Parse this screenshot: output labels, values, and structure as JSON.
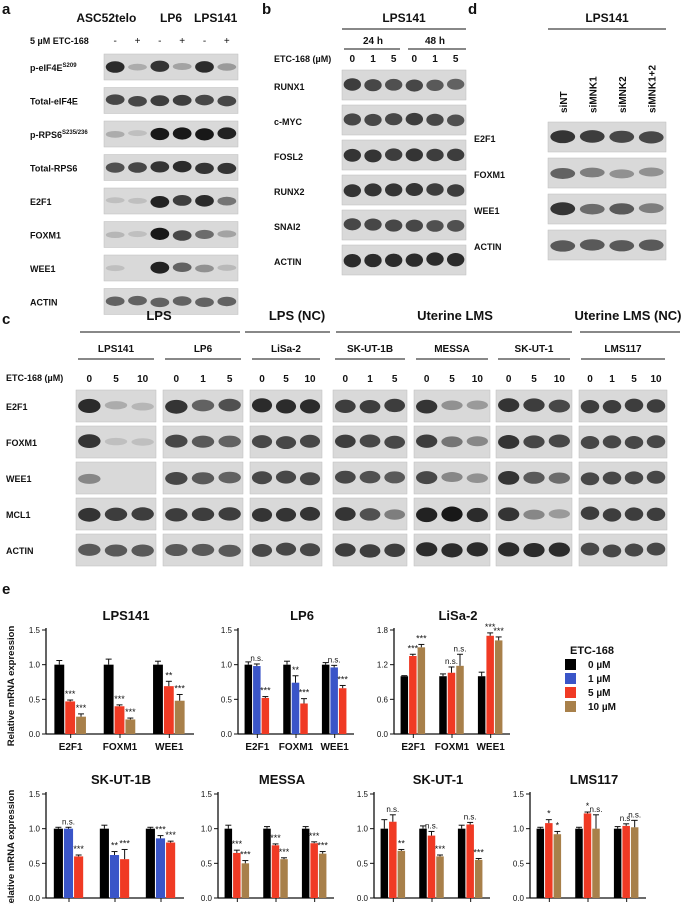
{
  "panel_letters": {
    "a": "a",
    "b": "b",
    "c": "c",
    "d": "d",
    "e": "e"
  },
  "panel_a": {
    "lines": [
      "ASC52telo",
      "LP6",
      "LPS141"
    ],
    "treatment_label": "5 µM ETC-168",
    "treatment_marks": [
      "-",
      "+",
      "-",
      "+",
      "-",
      "+"
    ],
    "rows": [
      {
        "label": "p-eIF4E",
        "sup": "S209"
      },
      {
        "label": "Total-eIF4E",
        "sup": ""
      },
      {
        "label": "p-RPS6",
        "sup": "S235/236"
      },
      {
        "label": "Total-RPS6",
        "sup": ""
      },
      {
        "label": "E2F1",
        "sup": ""
      },
      {
        "label": "FOXM1",
        "sup": ""
      },
      {
        "label": "WEE1",
        "sup": ""
      },
      {
        "label": "ACTIN",
        "sup": ""
      }
    ]
  },
  "panel_b": {
    "line": "LPS141",
    "timepoints": [
      "24 h",
      "48 h"
    ],
    "dose_label": "ETC-168 (µM)",
    "doses": [
      "0",
      "1",
      "5",
      "0",
      "1",
      "5"
    ],
    "rows": [
      "RUNX1",
      "c-MYC",
      "FOSL2",
      "RUNX2",
      "SNAI2",
      "ACTIN"
    ]
  },
  "panel_d": {
    "line": "LPS141",
    "conditions": [
      "siNT",
      "siMNK1",
      "siMNK2",
      "siMNK1+2"
    ],
    "rows": [
      "E2F1",
      "FOXM1",
      "WEE1",
      "ACTIN"
    ]
  },
  "panel_c": {
    "groups": [
      "LPS",
      "LPS (NC)",
      "Uterine LMS",
      "Uterine LMS (NC)"
    ],
    "dose_label": "ETC-168 (µM)",
    "lines": [
      {
        "name": "LPS141",
        "doses": [
          "0",
          "5",
          "10"
        ]
      },
      {
        "name": "LP6",
        "doses": [
          "0",
          "1",
          "5"
        ]
      },
      {
        "name": "LiSa-2",
        "doses": [
          "0",
          "5",
          "10"
        ]
      },
      {
        "name": "SK-UT-1B",
        "doses": [
          "0",
          "1",
          "5"
        ]
      },
      {
        "name": "MESSA",
        "doses": [
          "0",
          "5",
          "10"
        ]
      },
      {
        "name": "SK-UT-1",
        "doses": [
          "0",
          "5",
          "10"
        ]
      },
      {
        "name": "LMS117",
        "doses": [
          "0",
          "1",
          "5",
          "10"
        ]
      }
    ],
    "rows": [
      "E2F1",
      "FOXM1",
      "WEE1",
      "MCL1",
      "ACTIN"
    ]
  },
  "legend": {
    "title": "ETC-168",
    "entries": [
      {
        "name": "0 µM",
        "color": "#000000"
      },
      {
        "name": "1 µM",
        "color": "#3a55c8"
      },
      {
        "name": "5 µM",
        "color": "#f03a24"
      },
      {
        "name": "10 µM",
        "color": "#a8804a"
      }
    ]
  },
  "chart_data": [
    {
      "type": "bar",
      "title": "LPS141",
      "ylabel": "Relative mRNA expression",
      "categories": [
        "E2F1",
        "FOXM1",
        "WEE1"
      ],
      "ylim": [
        0,
        1.5
      ],
      "yticks": [
        "0.0",
        "0.5",
        "1.0",
        "1.5"
      ],
      "series": [
        {
          "name": "0 µM",
          "values": [
            1.0,
            1.0,
            1.0
          ],
          "err": [
            0.06,
            0.08,
            0.05
          ]
        },
        {
          "name": "5 µM",
          "values": [
            0.47,
            0.4,
            0.69
          ],
          "err": [
            0.02,
            0.02,
            0.07
          ]
        },
        {
          "name": "10 µM",
          "values": [
            0.25,
            0.21,
            0.48
          ],
          "err": [
            0.04,
            0.02,
            0.09
          ]
        }
      ],
      "sig": [
        [
          null,
          "***",
          "***"
        ],
        [
          null,
          "***",
          "***"
        ],
        [
          null,
          "**",
          "***"
        ]
      ]
    },
    {
      "type": "bar",
      "title": "LP6",
      "categories": [
        "E2F1",
        "FOXM1",
        "WEE1"
      ],
      "ylim": [
        0,
        1.5
      ],
      "yticks": [
        "0.0",
        "0.5",
        "1.0",
        "1.5"
      ],
      "series": [
        {
          "name": "0 µM",
          "values": [
            1.0,
            1.0,
            1.0
          ],
          "err": [
            0.04,
            0.05,
            0.03
          ]
        },
        {
          "name": "1 µM",
          "values": [
            0.98,
            0.74,
            0.96
          ],
          "err": [
            0.03,
            0.1,
            0.03
          ]
        },
        {
          "name": "5 µM",
          "values": [
            0.52,
            0.44,
            0.66
          ],
          "err": [
            0.02,
            0.07,
            0.04
          ]
        }
      ],
      "sig": [
        [
          null,
          "n.s.",
          "***"
        ],
        [
          null,
          "**",
          "***"
        ],
        [
          null,
          "n.s.",
          "***"
        ]
      ]
    },
    {
      "type": "bar",
      "title": "LiSa-2",
      "categories": [
        "E2F1",
        "FOXM1",
        "WEE1"
      ],
      "ylim": [
        0,
        1.8
      ],
      "yticks": [
        "0.0",
        "0.6",
        "1.2",
        "1.8"
      ],
      "series": [
        {
          "name": "0 µM",
          "values": [
            1.0,
            1.0,
            1.0
          ],
          "err": [
            0.01,
            0.04,
            0.07
          ]
        },
        {
          "name": "5 µM",
          "values": [
            1.35,
            1.06,
            1.7
          ],
          "err": [
            0.03,
            0.1,
            0.05
          ]
        },
        {
          "name": "10 µM",
          "values": [
            1.5,
            1.18,
            1.62
          ],
          "err": [
            0.05,
            0.2,
            0.06
          ]
        }
      ],
      "sig": [
        [
          null,
          "***",
          "***"
        ],
        [
          null,
          "n.s.",
          "n.s."
        ],
        [
          null,
          "***",
          "***"
        ]
      ]
    },
    {
      "type": "bar",
      "title": "SK-UT-1B",
      "ylabel": "Relative mRNA expression",
      "categories": [
        "E2F1",
        "FOXM1",
        "WEE1"
      ],
      "ylim": [
        0,
        1.5
      ],
      "yticks": [
        "0.0",
        "0.5",
        "1.0",
        "1.5"
      ],
      "series": [
        {
          "name": "0 µM",
          "values": [
            1.0,
            1.0,
            1.0
          ],
          "err": [
            0.02,
            0.05,
            0.02
          ]
        },
        {
          "name": "1 µM",
          "values": [
            1.0,
            0.62,
            0.86
          ],
          "err": [
            0.02,
            0.05,
            0.04
          ]
        },
        {
          "name": "5 µM",
          "values": [
            0.6,
            0.56,
            0.8
          ],
          "err": [
            0.02,
            0.14,
            0.02
          ]
        }
      ],
      "sig": [
        [
          null,
          "n.s.",
          "***"
        ],
        [
          null,
          "**",
          "***"
        ],
        [
          null,
          "***",
          "***"
        ]
      ]
    },
    {
      "type": "bar",
      "title": "MESSA",
      "categories": [
        "E2F1",
        "FOXM1",
        "WEE1"
      ],
      "ylim": [
        0,
        1.5
      ],
      "yticks": [
        "0.0",
        "0.5",
        "1.0",
        "1.5"
      ],
      "series": [
        {
          "name": "0 µM",
          "values": [
            1.0,
            1.0,
            1.0
          ],
          "err": [
            0.05,
            0.03,
            0.03
          ]
        },
        {
          "name": "5 µM",
          "values": [
            0.65,
            0.76,
            0.79
          ],
          "err": [
            0.04,
            0.02,
            0.02
          ]
        },
        {
          "name": "10 µM",
          "values": [
            0.5,
            0.56,
            0.64
          ],
          "err": [
            0.04,
            0.02,
            0.03
          ]
        }
      ],
      "sig": [
        [
          null,
          "***",
          "***"
        ],
        [
          null,
          "***",
          "***"
        ],
        [
          null,
          "***",
          "***"
        ]
      ]
    },
    {
      "type": "bar",
      "title": "SK-UT-1",
      "categories": [
        "E2F1",
        "FOXM1",
        "WEE1"
      ],
      "ylim": [
        0,
        1.5
      ],
      "yticks": [
        "0.0",
        "0.5",
        "1.0",
        "1.5"
      ],
      "series": [
        {
          "name": "0 µM",
          "values": [
            1.0,
            1.0,
            1.0
          ],
          "err": [
            0.13,
            0.04,
            0.05
          ]
        },
        {
          "name": "5 µM",
          "values": [
            1.1,
            0.9,
            1.06
          ],
          "err": [
            0.1,
            0.06,
            0.03
          ]
        },
        {
          "name": "10 µM",
          "values": [
            0.68,
            0.6,
            0.55
          ],
          "err": [
            0.02,
            0.02,
            0.02
          ]
        }
      ],
      "sig": [
        [
          null,
          "n.s.",
          "**"
        ],
        [
          null,
          "n.s.",
          "***"
        ],
        [
          null,
          "n.s.",
          "***"
        ]
      ]
    },
    {
      "type": "bar",
      "title": "LMS117",
      "categories": [
        "E2F1",
        "FOXM1",
        "WEE1"
      ],
      "ylim": [
        0,
        1.5
      ],
      "yticks": [
        "0.0",
        "0.5",
        "1.0",
        "1.5"
      ],
      "series": [
        {
          "name": "0 µM",
          "values": [
            1.0,
            1.0,
            1.0
          ],
          "err": [
            0.02,
            0.02,
            0.03
          ]
        },
        {
          "name": "5 µM",
          "values": [
            1.08,
            1.22,
            1.04
          ],
          "err": [
            0.05,
            0.02,
            0.03
          ]
        },
        {
          "name": "10 µM",
          "values": [
            0.92,
            1.0,
            1.02
          ],
          "err": [
            0.04,
            0.2,
            0.1
          ]
        }
      ],
      "sig": [
        [
          null,
          "*",
          "*"
        ],
        [
          null,
          "*",
          "n.s."
        ],
        [
          null,
          "n.s.",
          "n.s."
        ]
      ]
    }
  ]
}
